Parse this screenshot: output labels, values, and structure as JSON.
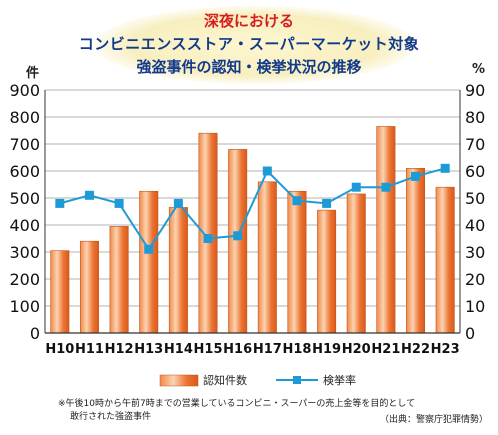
{
  "header": {
    "line1": "深夜における",
    "line2": "コンビニエンスストア・スーパーマーケット対象",
    "line3": "強盗事件の認知・検挙状況の推移"
  },
  "axes": {
    "left_unit": "件",
    "right_unit": "%"
  },
  "legend": {
    "bar_label": "認知件数",
    "line_label": "検挙率"
  },
  "footnote": {
    "line1": "※午後10時から午前7時までの営業しているコンビニ・スーパーの売上金等を目的として",
    "line2": "敢行された強盗事件"
  },
  "source": "（出典：警察庁犯罪情勢）",
  "colors": {
    "bar": "#e8692a",
    "bar_light": "#fbd3b0",
    "line": "#1e9bd7",
    "grid": "#9a9a9a"
  },
  "chart_data": {
    "type": "bar",
    "categories": [
      "H10",
      "H11",
      "H12",
      "H13",
      "H14",
      "H15",
      "H16",
      "H17",
      "H18",
      "H19",
      "H20",
      "H21",
      "H22",
      "H23"
    ],
    "series": [
      {
        "name": "認知件数",
        "type": "bar",
        "axis": "left",
        "values": [
          305,
          340,
          395,
          525,
          465,
          740,
          680,
          560,
          525,
          455,
          515,
          765,
          610,
          540
        ]
      },
      {
        "name": "検挙率",
        "type": "line",
        "axis": "right",
        "values": [
          48,
          51,
          48,
          31,
          48,
          35,
          36,
          60,
          49,
          48,
          54,
          54,
          58,
          61
        ]
      }
    ],
    "ylim_left": [
      0,
      900
    ],
    "ylim_right": [
      0,
      90
    ],
    "yticks_left": [
      0,
      100,
      200,
      300,
      400,
      500,
      600,
      700,
      800,
      900
    ],
    "yticks_right": [
      0,
      10,
      20,
      30,
      40,
      50,
      60,
      70,
      80,
      90
    ],
    "ylabel_left": "件",
    "ylabel_right": "%",
    "grid": true,
    "legend_position": "bottom"
  }
}
